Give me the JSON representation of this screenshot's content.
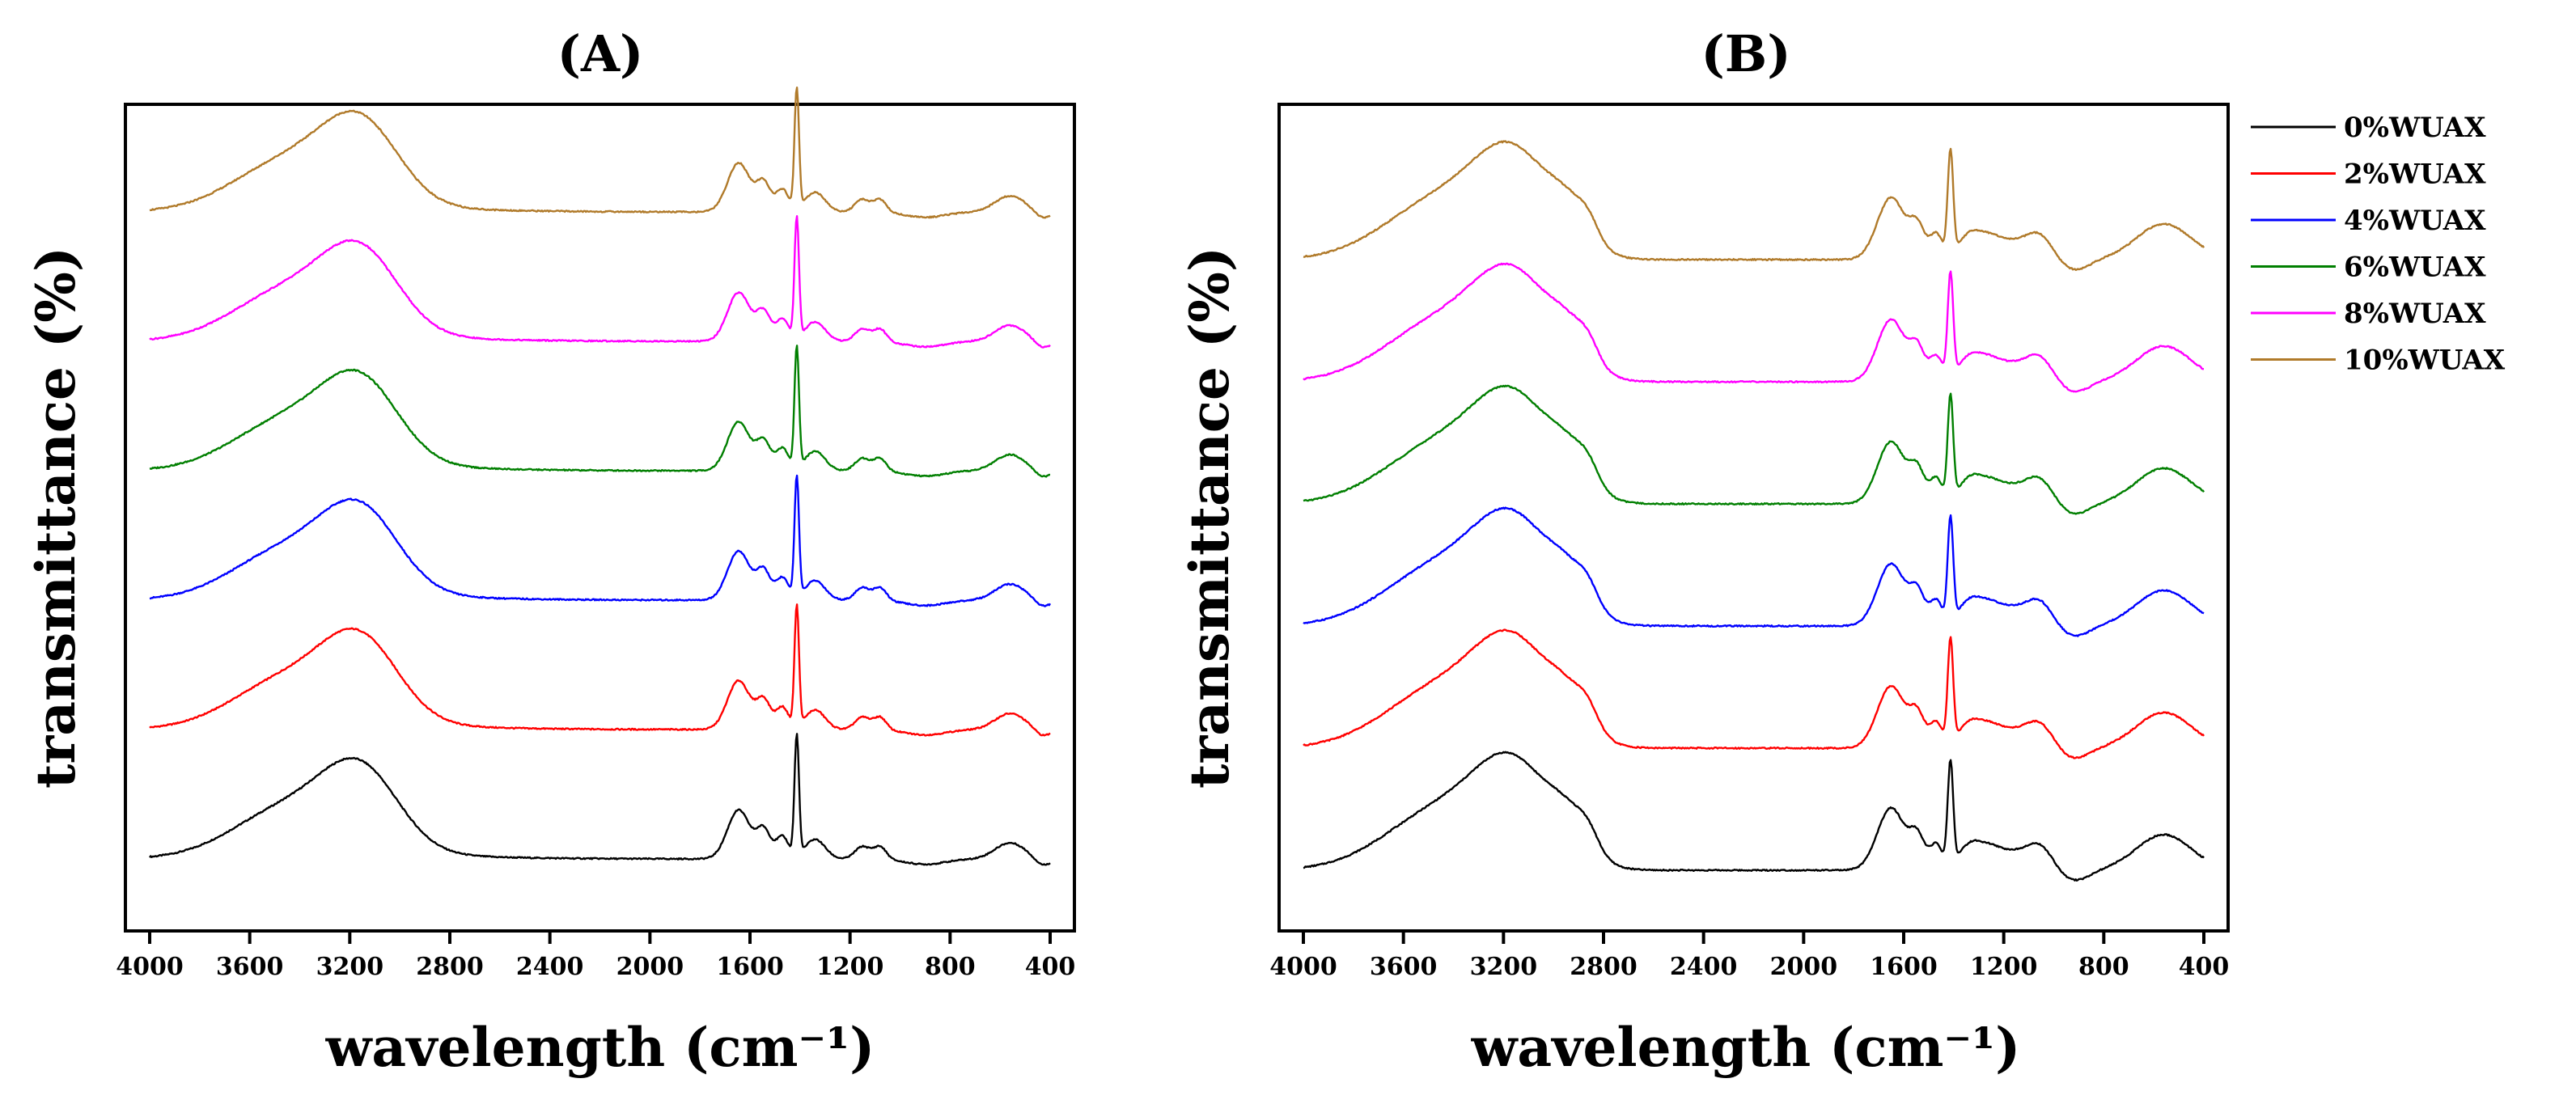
{
  "chart_data": [
    {
      "type": "line",
      "title": "(A)",
      "xlabel": "wavelength (cm⁻¹)",
      "ylabel": "transmittance (%)",
      "xlim": [
        4000,
        400
      ],
      "x_reversed": true,
      "xticks": [
        4000,
        3600,
        3200,
        2800,
        2400,
        2000,
        1600,
        1200,
        800,
        400
      ],
      "yticks_shown": false,
      "grid": false,
      "legend": "none",
      "series": [
        {
          "name": "0%WUAX",
          "color": "#000000",
          "offset": 0.0,
          "features": [
            3400,
            3140,
            1640,
            1545,
            1412,
            1150,
            1080,
            560
          ]
        },
        {
          "name": "2%WUAX",
          "color": "#ff0000",
          "offset": 1.0,
          "features": [
            3400,
            3140,
            1640,
            1545,
            1412,
            1150,
            1080,
            560
          ]
        },
        {
          "name": "4%WUAX",
          "color": "#0000ff",
          "offset": 2.0,
          "features": [
            3400,
            3140,
            1640,
            1545,
            1412,
            1150,
            1080,
            560
          ]
        },
        {
          "name": "6%WUAX",
          "color": "#007f00",
          "offset": 3.0,
          "features": [
            3400,
            3140,
            1640,
            1545,
            1412,
            1150,
            1080,
            560
          ]
        },
        {
          "name": "8%WUAX",
          "color": "#ff00ff",
          "offset": 4.0,
          "features": [
            3400,
            3140,
            1640,
            1545,
            1412,
            1150,
            1080,
            560
          ]
        },
        {
          "name": "10%WUAX",
          "color": "#b07a2a",
          "offset": 5.0,
          "features": [
            3400,
            3140,
            1640,
            1545,
            1412,
            1150,
            1080,
            560
          ]
        }
      ]
    },
    {
      "type": "line",
      "title": "(B)",
      "xlabel": "wavelength (cm⁻¹)",
      "ylabel": "transmittance (%)",
      "xlim": [
        4000,
        400
      ],
      "x_reversed": true,
      "xticks": [
        4000,
        3600,
        3200,
        2800,
        2400,
        2000,
        1600,
        1200,
        800,
        400
      ],
      "yticks_shown": false,
      "grid": false,
      "legend": "outside-right",
      "series": [
        {
          "name": "0%WUAX",
          "color": "#000000",
          "offset": 0.0,
          "features": [
            3400,
            3140,
            2920,
            1640,
            1545,
            1412,
            1060,
            560
          ]
        },
        {
          "name": "2%WUAX",
          "color": "#ff0000",
          "offset": 1.0,
          "features": [
            3400,
            3140,
            2920,
            1640,
            1545,
            1412,
            1060,
            560
          ]
        },
        {
          "name": "4%WUAX",
          "color": "#0000ff",
          "offset": 2.0,
          "features": [
            3400,
            3140,
            2920,
            1640,
            1545,
            1412,
            1060,
            560
          ]
        },
        {
          "name": "6%WUAX",
          "color": "#007f00",
          "offset": 3.0,
          "features": [
            3400,
            3140,
            2920,
            1640,
            1545,
            1412,
            1060,
            560
          ]
        },
        {
          "name": "8%WUAX",
          "color": "#ff00ff",
          "offset": 4.0,
          "features": [
            3400,
            3140,
            2920,
            1640,
            1545,
            1412,
            1060,
            560
          ]
        },
        {
          "name": "10%WUAX",
          "color": "#b07a2a",
          "offset": 5.0,
          "features": [
            3400,
            3140,
            2920,
            1640,
            1545,
            1412,
            1060,
            560
          ]
        }
      ]
    }
  ]
}
